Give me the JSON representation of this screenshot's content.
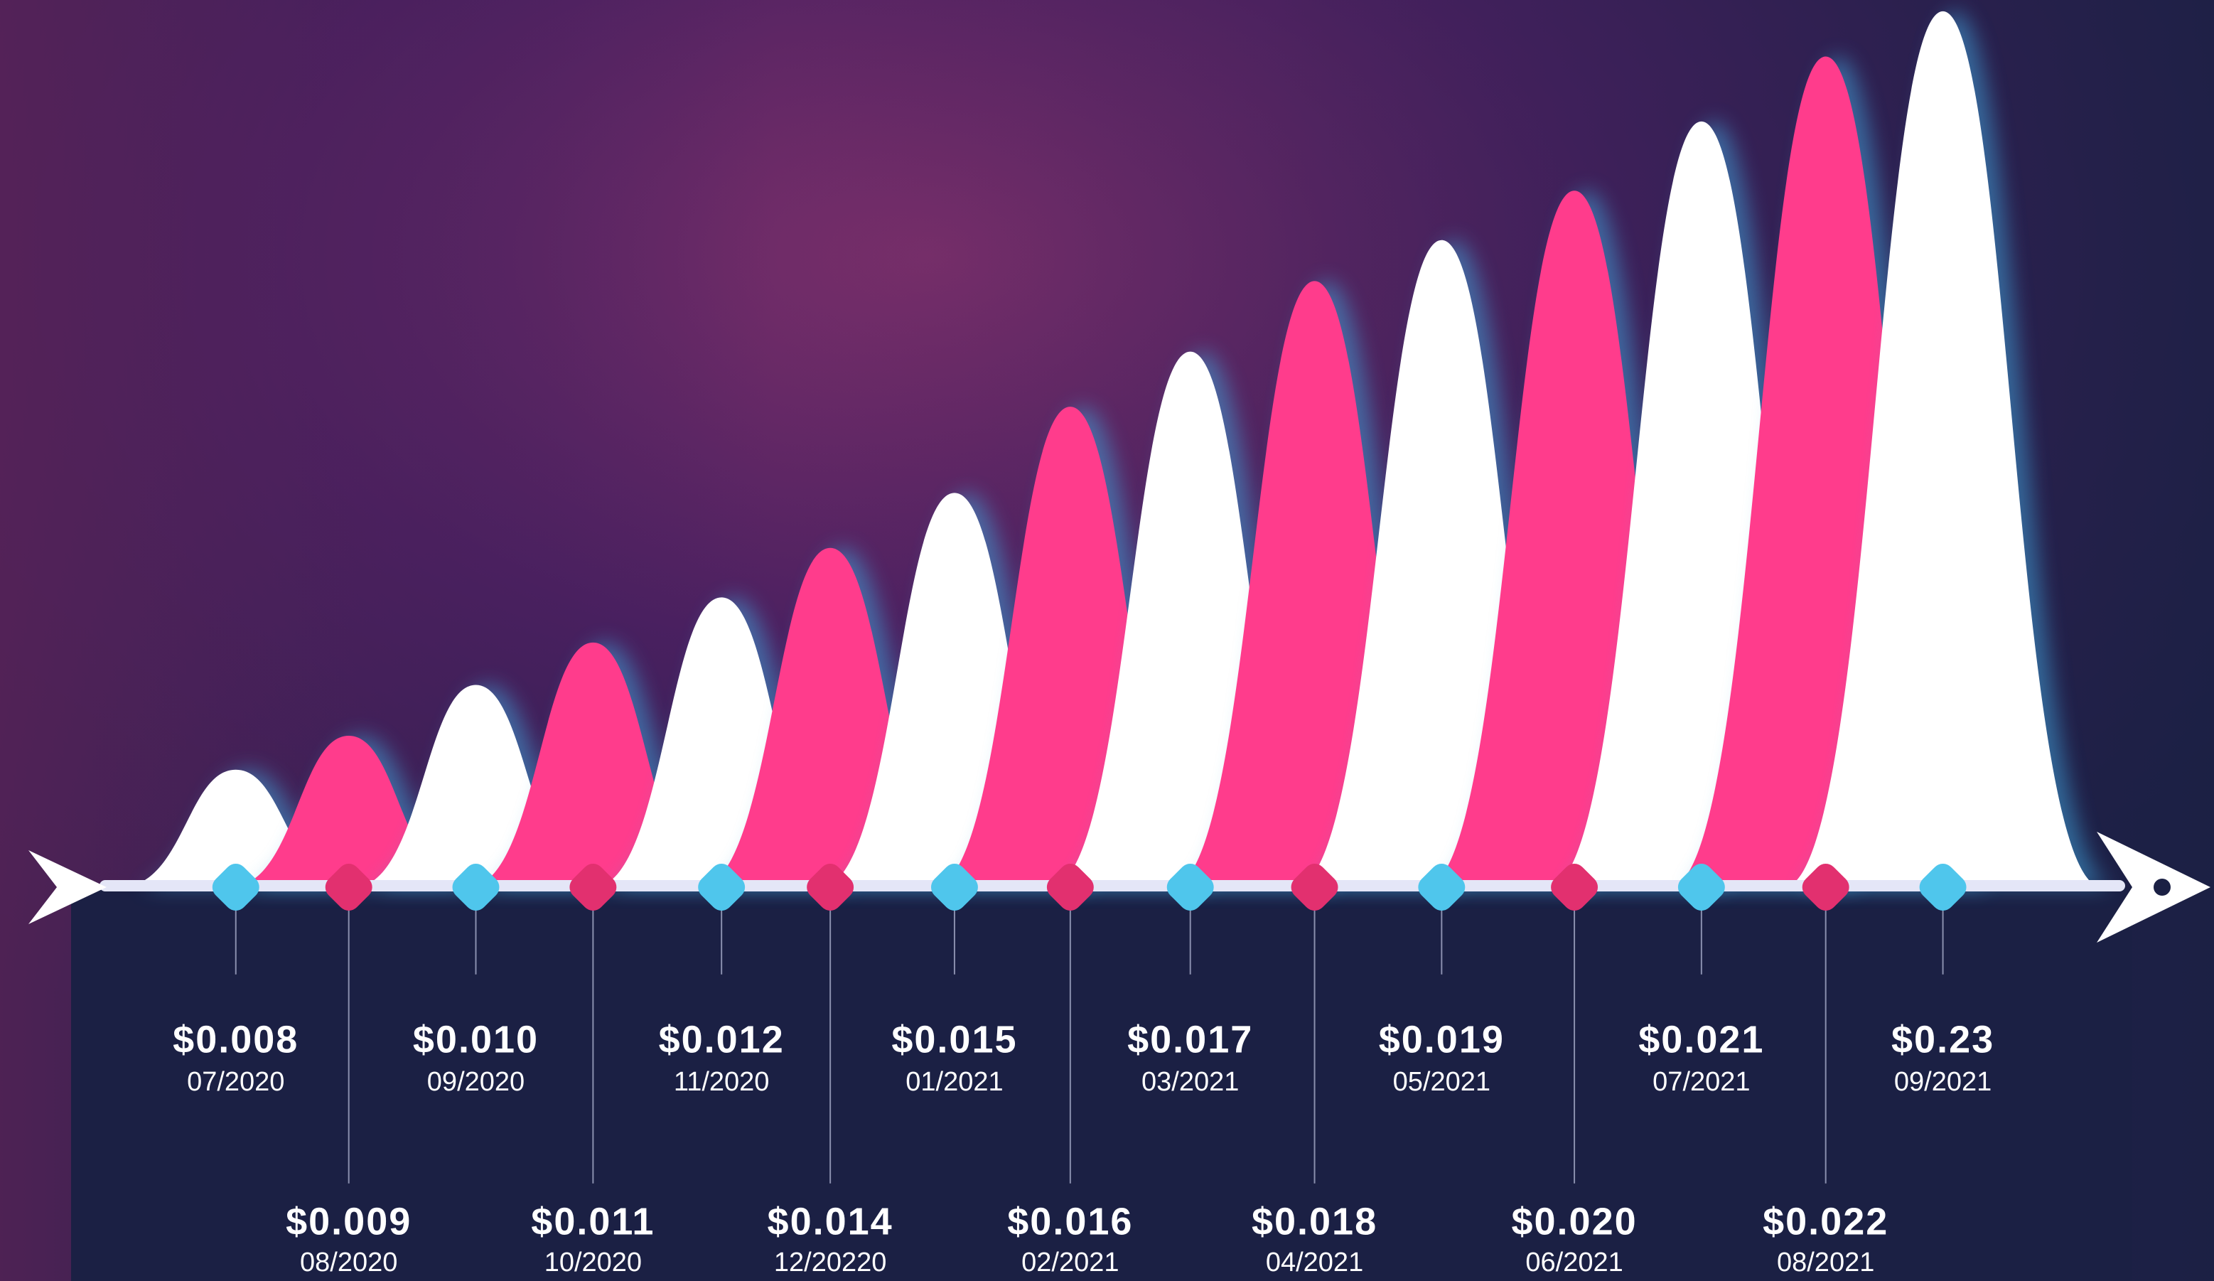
{
  "timeline": {
    "items": [
      {
        "price": "$0.008",
        "date": "07/2020"
      },
      {
        "price": "$0.009",
        "date": "08/2020"
      },
      {
        "price": "$0.010",
        "date": "09/2020"
      },
      {
        "price": "$0.011",
        "date": "10/2020"
      },
      {
        "price": "$0.012",
        "date": "11/2020"
      },
      {
        "price": "$0.014",
        "date": "12/20220"
      },
      {
        "price": "$0.015",
        "date": "01/2021"
      },
      {
        "price": "$0.016",
        "date": "02/2021"
      },
      {
        "price": "$0.017",
        "date": "03/2021"
      },
      {
        "price": "$0.018",
        "date": "04/2021"
      },
      {
        "price": "$0.019",
        "date": "05/2021"
      },
      {
        "price": "$0.020",
        "date": "06/2021"
      },
      {
        "price": "$0.021",
        "date": "07/2021"
      },
      {
        "price": "$0.022",
        "date": "08/2021"
      },
      {
        "price": "$0.23",
        "date": "09/2021"
      }
    ]
  }
}
